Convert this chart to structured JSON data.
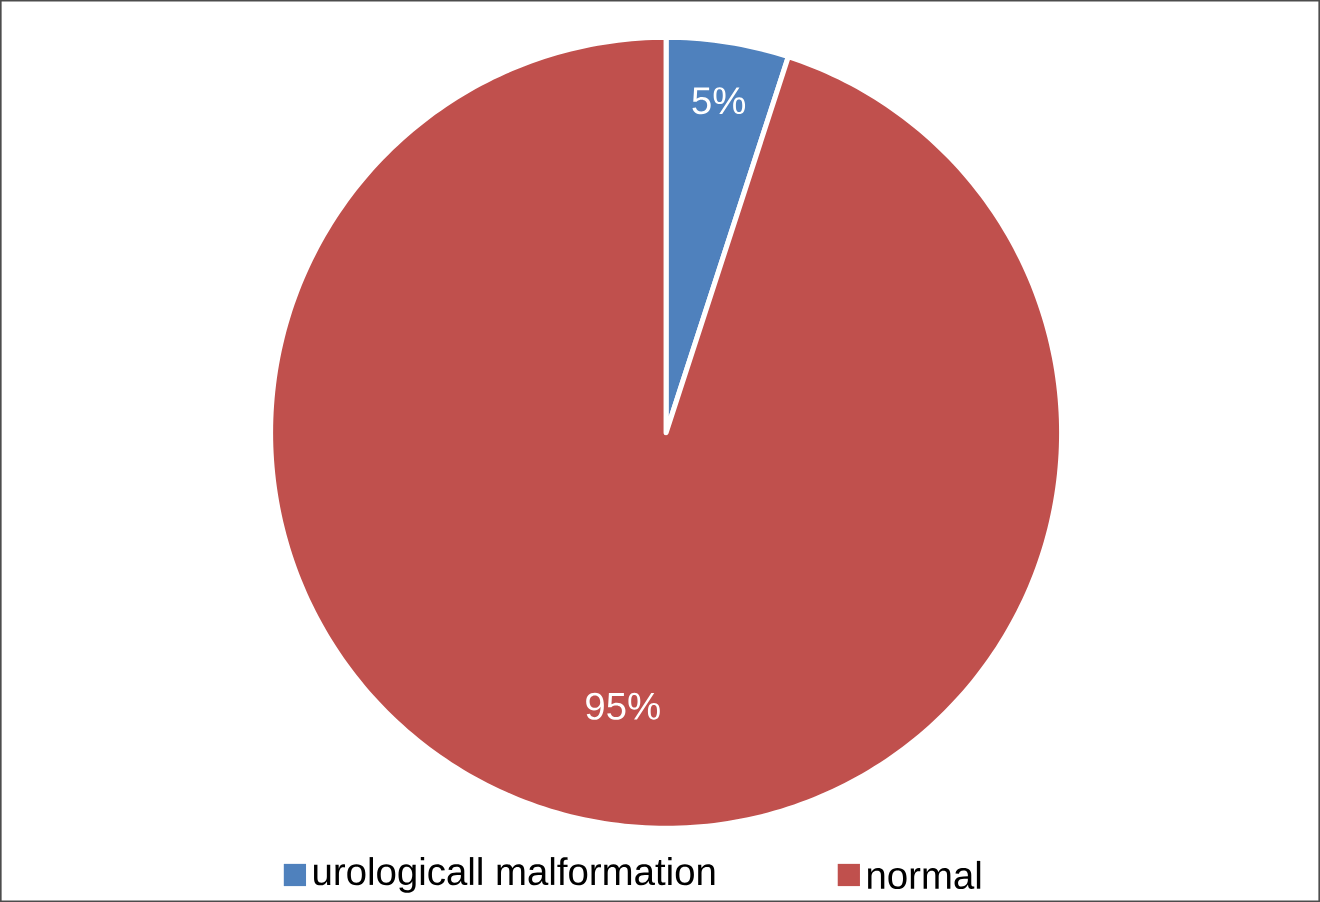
{
  "chart_data": {
    "type": "pie",
    "categories": [
      "urologicall malformation",
      "normal"
    ],
    "values": [
      5,
      95
    ],
    "colors": [
      "#4f81bd",
      "#c0504d"
    ],
    "value_labels": [
      "5%",
      "95%"
    ],
    "legend": "bottom"
  }
}
